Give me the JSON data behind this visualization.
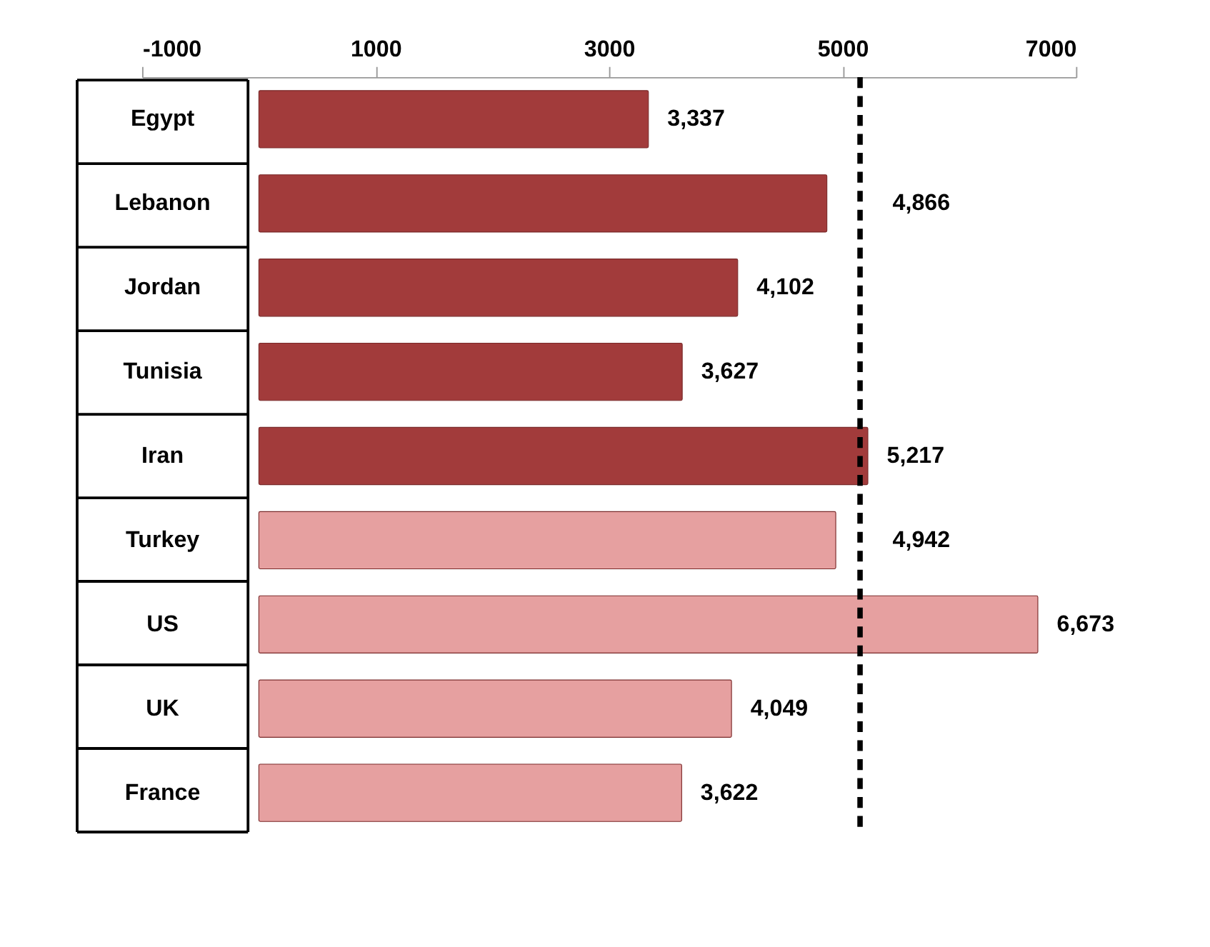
{
  "chart_data": {
    "type": "bar",
    "orientation": "horizontal",
    "categories": [
      "Egypt",
      "Lebanon",
      "Jordan",
      "Tunisia",
      "Iran",
      "Turkey",
      "US",
      "UK",
      "France"
    ],
    "values": [
      3337,
      4866,
      4102,
      3627,
      5217,
      4942,
      6673,
      4049,
      3622
    ],
    "value_labels": [
      "3,337",
      "4,866",
      "4,102",
      "3,627",
      "5,217",
      "4,942",
      "6,673",
      "4,049",
      "3,622"
    ],
    "colors": [
      "#a23b3b",
      "#a23b3b",
      "#a23b3b",
      "#a23b3b",
      "#a23b3b",
      "#e6a0a0",
      "#e6a0a0",
      "#e6a0a0",
      "#e6a0a0"
    ],
    "xlim": [
      -1000,
      7000
    ],
    "xticks": [
      {
        "value": -1000,
        "label": "-1000"
      },
      {
        "value": 1000,
        "label": "1000"
      },
      {
        "value": 3000,
        "label": "3000"
      },
      {
        "value": 5000,
        "label": "5000"
      },
      {
        "value": 7000,
        "label": "7000"
      }
    ],
    "ref_lines": [
      {
        "axis": "x",
        "value": 5150,
        "color": "#000000",
        "line_style": "dashed"
      }
    ],
    "grid": false
  }
}
